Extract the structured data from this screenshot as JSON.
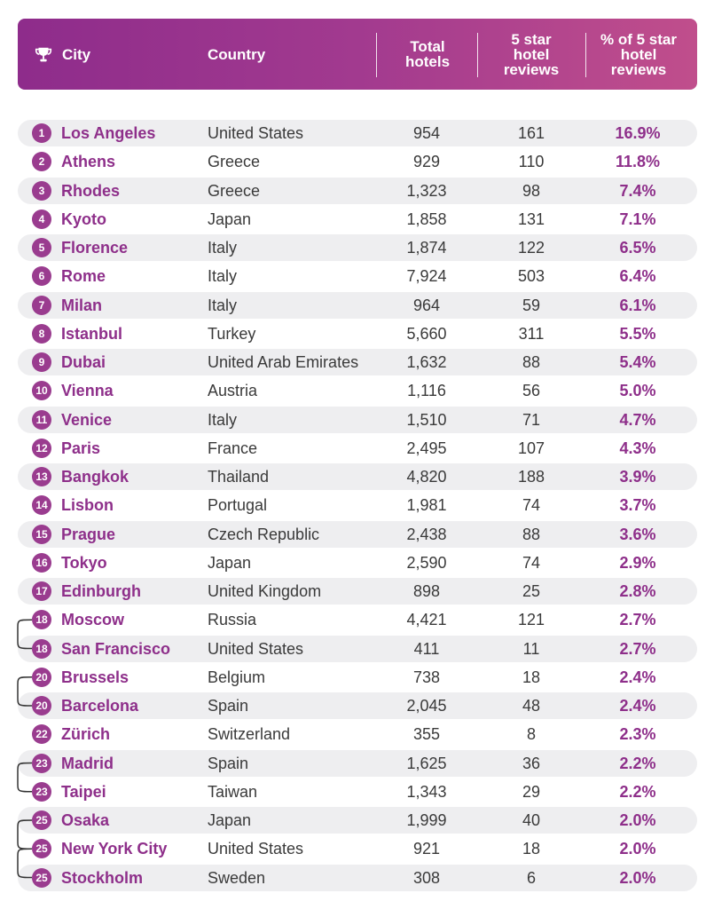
{
  "header": {
    "city": "City",
    "country": "Country",
    "total_hotels": "Total hotels",
    "five_star_reviews": "5 star hotel reviews",
    "pct_five_star": "% of 5 star hotel reviews"
  },
  "rows": [
    {
      "rank": "1",
      "city": "Los Angeles",
      "country": "United States",
      "total": "954",
      "five": "161",
      "pct": "16.9%"
    },
    {
      "rank": "2",
      "city": "Athens",
      "country": "Greece",
      "total": "929",
      "five": "110",
      "pct": "11.8%"
    },
    {
      "rank": "3",
      "city": "Rhodes",
      "country": "Greece",
      "total": "1,323",
      "five": "98",
      "pct": "7.4%"
    },
    {
      "rank": "4",
      "city": "Kyoto",
      "country": "Japan",
      "total": "1,858",
      "five": "131",
      "pct": "7.1%"
    },
    {
      "rank": "5",
      "city": "Florence",
      "country": "Italy",
      "total": "1,874",
      "five": "122",
      "pct": "6.5%"
    },
    {
      "rank": "6",
      "city": "Rome",
      "country": "Italy",
      "total": "7,924",
      "five": "503",
      "pct": "6.4%"
    },
    {
      "rank": "7",
      "city": "Milan",
      "country": "Italy",
      "total": "964",
      "five": "59",
      "pct": "6.1%"
    },
    {
      "rank": "8",
      "city": "Istanbul",
      "country": "Turkey",
      "total": "5,660",
      "five": "311",
      "pct": "5.5%"
    },
    {
      "rank": "9",
      "city": "Dubai",
      "country": "United Arab Emirates",
      "total": "1,632",
      "five": "88",
      "pct": "5.4%"
    },
    {
      "rank": "10",
      "city": "Vienna",
      "country": "Austria",
      "total": "1,116",
      "five": "56",
      "pct": "5.0%"
    },
    {
      "rank": "11",
      "city": "Venice",
      "country": "Italy",
      "total": "1,510",
      "five": "71",
      "pct": "4.7%"
    },
    {
      "rank": "12",
      "city": "Paris",
      "country": "France",
      "total": "2,495",
      "five": "107",
      "pct": "4.3%"
    },
    {
      "rank": "13",
      "city": "Bangkok",
      "country": "Thailand",
      "total": "4,820",
      "five": "188",
      "pct": "3.9%"
    },
    {
      "rank": "14",
      "city": "Lisbon",
      "country": "Portugal",
      "total": "1,981",
      "five": "74",
      "pct": "3.7%"
    },
    {
      "rank": "15",
      "city": "Prague",
      "country": "Czech Republic",
      "total": "2,438",
      "five": "88",
      "pct": "3.6%"
    },
    {
      "rank": "16",
      "city": "Tokyo",
      "country": "Japan",
      "total": "2,590",
      "five": "74",
      "pct": "2.9%"
    },
    {
      "rank": "17",
      "city": "Edinburgh",
      "country": "United Kingdom",
      "total": "898",
      "five": "25",
      "pct": "2.8%"
    },
    {
      "rank": "18",
      "city": "Moscow",
      "country": "Russia",
      "total": "4,421",
      "five": "121",
      "pct": "2.7%"
    },
    {
      "rank": "18",
      "city": "San Francisco",
      "country": "United States",
      "total": "411",
      "five": "11",
      "pct": "2.7%"
    },
    {
      "rank": "20",
      "city": "Brussels",
      "country": "Belgium",
      "total": "738",
      "five": "18",
      "pct": "2.4%"
    },
    {
      "rank": "20",
      "city": "Barcelona",
      "country": "Spain",
      "total": "2,045",
      "five": "48",
      "pct": "2.4%"
    },
    {
      "rank": "22",
      "city": "Zürich",
      "country": "Switzerland",
      "total": "355",
      "five": "8",
      "pct": "2.3%"
    },
    {
      "rank": "23",
      "city": "Madrid",
      "country": "Spain",
      "total": "1,625",
      "five": "36",
      "pct": "2.2%"
    },
    {
      "rank": "23",
      "city": "Taipei",
      "country": "Taiwan",
      "total": "1,343",
      "five": "29",
      "pct": "2.2%"
    },
    {
      "rank": "25",
      "city": "Osaka",
      "country": "Japan",
      "total": "1,999",
      "five": "40",
      "pct": "2.0%"
    },
    {
      "rank": "25",
      "city": "New York City",
      "country": "United States",
      "total": "921",
      "five": "18",
      "pct": "2.0%"
    },
    {
      "rank": "25",
      "city": "Stockholm",
      "country": "Sweden",
      "total": "308",
      "five": "6",
      "pct": "2.0%"
    }
  ],
  "tie_groups": [
    [
      17,
      18
    ],
    [
      19,
      20
    ],
    [
      22,
      23
    ],
    [
      24,
      25,
      26
    ]
  ],
  "icons": {
    "header": "trophy-icon"
  },
  "colors": {
    "accent": "#8e2f8a",
    "badge": "#9a3c8f",
    "row_alt": "#eeeef0",
    "header_start": "#8e2c8b",
    "header_end": "#c04e8c"
  }
}
